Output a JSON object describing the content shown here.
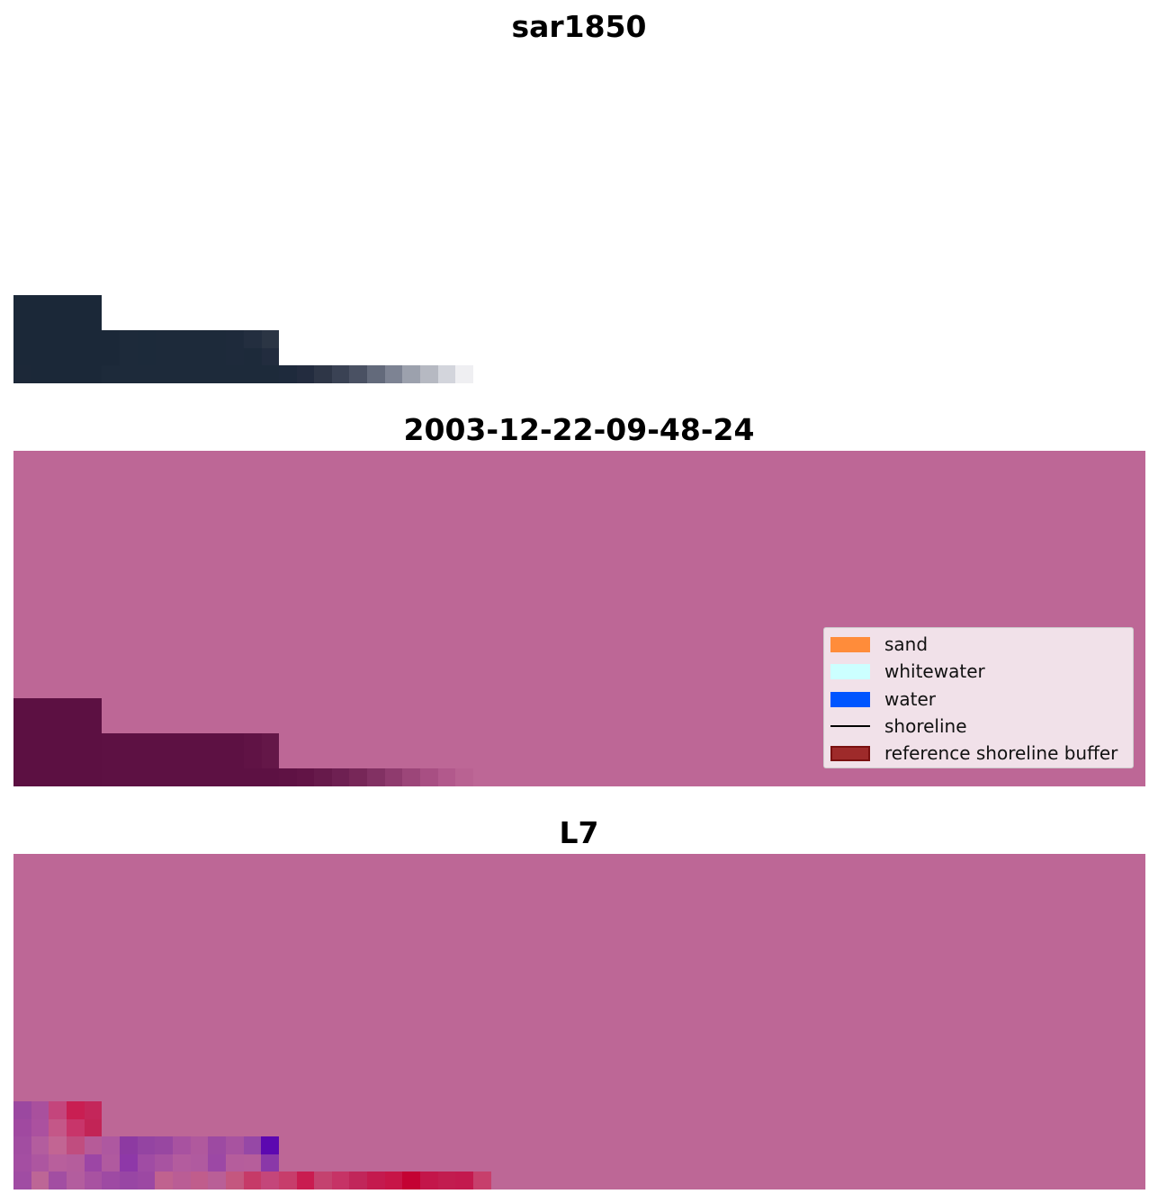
{
  "panels": [
    {
      "title": "sar1850"
    },
    {
      "title": "2003-12-22-09-48-24"
    },
    {
      "title": "L7"
    }
  ],
  "legend": {
    "items": [
      {
        "label": "sand",
        "kind": "patch",
        "color": "#ff8c3a",
        "edge": "none"
      },
      {
        "label": "whitewater",
        "kind": "patch",
        "color": "#ccffff",
        "edge": "none"
      },
      {
        "label": "water",
        "kind": "patch",
        "color": "#0055ff",
        "edge": "none"
      },
      {
        "label": "shoreline",
        "kind": "line",
        "color": "#000000"
      },
      {
        "label": "reference shoreline buffer",
        "kind": "patch",
        "color": "#9e2a2a",
        "edge": "#7a1010"
      }
    ]
  },
  "colors": {
    "overlay": "#bd6796",
    "sar_dark": "#1b2838",
    "classified_dark": "#5c1042"
  }
}
